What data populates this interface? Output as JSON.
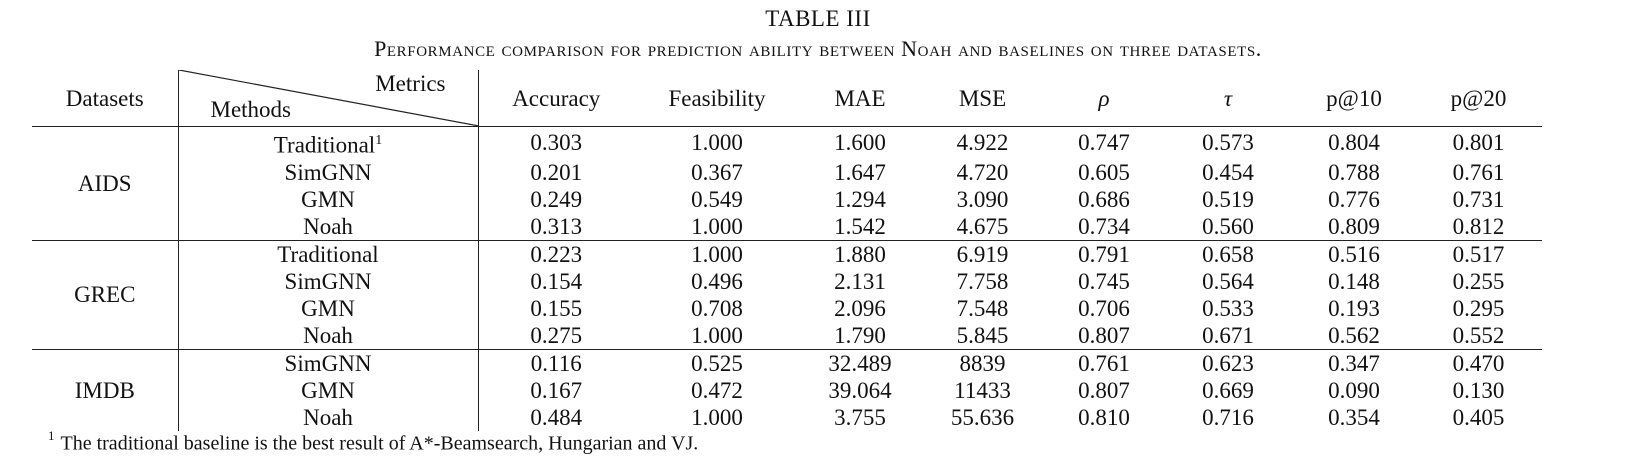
{
  "caption": {
    "title": "TABLE III",
    "subtitle": "Performance comparison for prediction ability between Noah and baselines on three datasets."
  },
  "header": {
    "datasets": "Datasets",
    "metrics": "Metrics",
    "methods": "Methods",
    "columns": [
      "Accuracy",
      "Feasibility",
      "MAE",
      "MSE",
      "ρ",
      "τ",
      "p@10",
      "p@20"
    ]
  },
  "groups": [
    {
      "dataset": "AIDS",
      "rows": [
        {
          "method": "Traditional",
          "sup": "1",
          "values": [
            "0.303",
            "1.000",
            "1.600",
            "4.922",
            "0.747",
            "0.573",
            "0.804",
            "0.801"
          ],
          "bold": [
            false,
            true,
            false,
            false,
            true,
            true,
            false,
            false
          ]
        },
        {
          "method": "SimGNN",
          "sup": "",
          "values": [
            "0.201",
            "0.367",
            "1.647",
            "4.720",
            "0.605",
            "0.454",
            "0.788",
            "0.761"
          ],
          "bold": [
            false,
            false,
            false,
            false,
            false,
            false,
            false,
            false
          ]
        },
        {
          "method": "GMN",
          "sup": "",
          "values": [
            "0.249",
            "0.549",
            "1.294",
            "3.090",
            "0.686",
            "0.519",
            "0.776",
            "0.731"
          ],
          "bold": [
            false,
            false,
            true,
            true,
            false,
            false,
            false,
            false
          ]
        },
        {
          "method": "Noah",
          "sup": "",
          "values": [
            "0.313",
            "1.000",
            "1.542",
            "4.675",
            "0.734",
            "0.560",
            "0.809",
            "0.812"
          ],
          "bold": [
            true,
            true,
            false,
            false,
            false,
            false,
            true,
            true
          ]
        }
      ]
    },
    {
      "dataset": "GREC",
      "rows": [
        {
          "method": "Traditional",
          "sup": "",
          "values": [
            "0.223",
            "1.000",
            "1.880",
            "6.919",
            "0.791",
            "0.658",
            "0.516",
            "0.517"
          ],
          "bold": [
            false,
            true,
            false,
            false,
            false,
            false,
            false,
            false
          ]
        },
        {
          "method": "SimGNN",
          "sup": "",
          "values": [
            "0.154",
            "0.496",
            "2.131",
            "7.758",
            "0.745",
            "0.564",
            "0.148",
            "0.255"
          ],
          "bold": [
            false,
            false,
            false,
            false,
            false,
            false,
            false,
            false
          ]
        },
        {
          "method": "GMN",
          "sup": "",
          "values": [
            "0.155",
            "0.708",
            "2.096",
            "7.548",
            "0.706",
            "0.533",
            "0.193",
            "0.295"
          ],
          "bold": [
            false,
            false,
            false,
            false,
            false,
            false,
            false,
            false
          ]
        },
        {
          "method": "Noah",
          "sup": "",
          "values": [
            "0.275",
            "1.000",
            "1.790",
            "5.845",
            "0.807",
            "0.671",
            "0.562",
            "0.552"
          ],
          "bold": [
            true,
            true,
            true,
            true,
            true,
            true,
            true,
            true
          ]
        }
      ]
    },
    {
      "dataset": "IMDB",
      "rows": [
        {
          "method": "SimGNN",
          "sup": "",
          "values": [
            "0.116",
            "0.525",
            "32.489",
            "8839",
            "0.761",
            "0.623",
            "0.347",
            "0.470"
          ],
          "bold": [
            false,
            false,
            false,
            false,
            false,
            false,
            false,
            true
          ]
        },
        {
          "method": "GMN",
          "sup": "",
          "values": [
            "0.167",
            "0.472",
            "39.064",
            "11433",
            "0.807",
            "0.669",
            "0.090",
            "0.130"
          ],
          "bold": [
            false,
            false,
            false,
            false,
            false,
            false,
            false,
            false
          ]
        },
        {
          "method": "Noah",
          "sup": "",
          "values": [
            "0.484",
            "1.000",
            "3.755",
            "55.636",
            "0.810",
            "0.716",
            "0.354",
            "0.405"
          ],
          "bold": [
            true,
            true,
            true,
            true,
            true,
            true,
            true,
            false
          ]
        }
      ]
    }
  ],
  "footnote": {
    "mark": "1",
    "text": "The traditional baseline is the best result of A*-Beamsearch, Hungarian and VJ."
  }
}
